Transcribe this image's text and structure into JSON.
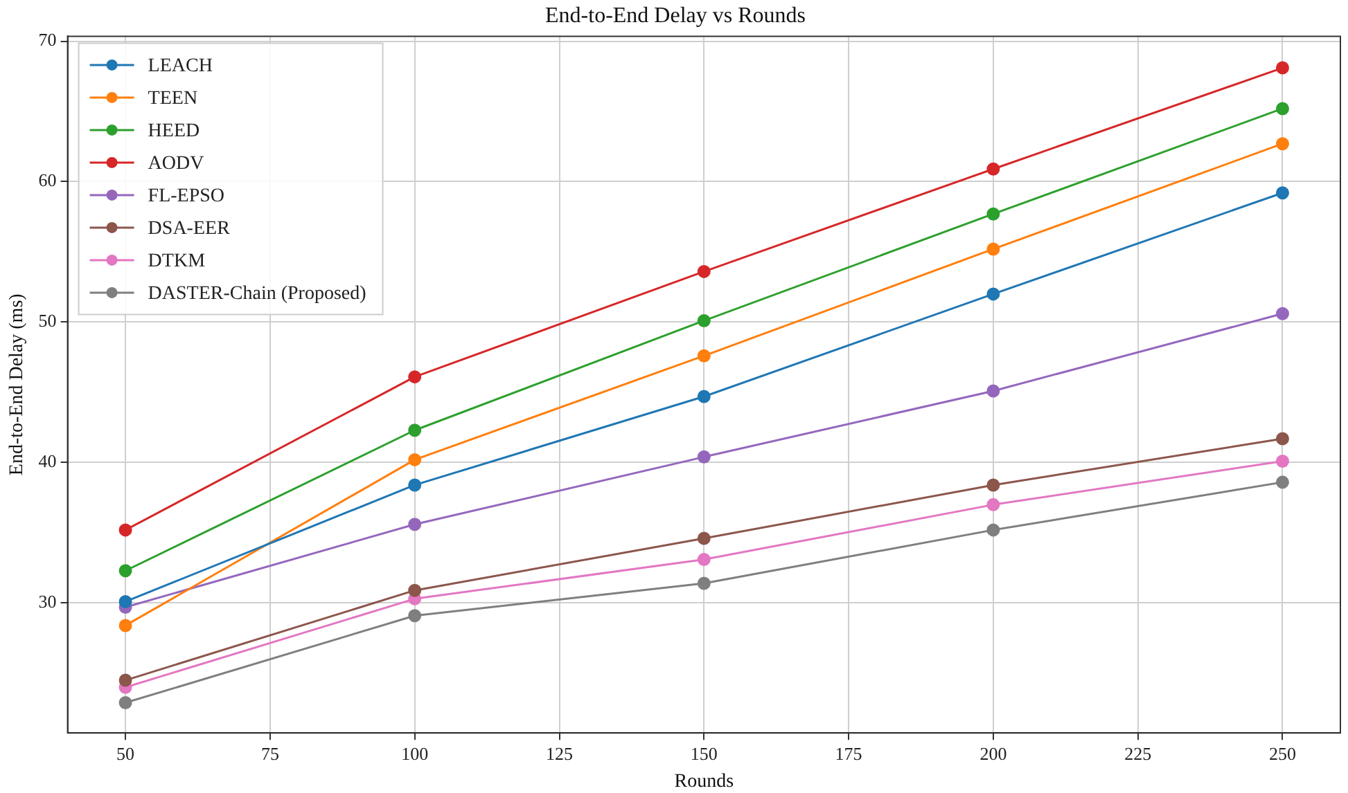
{
  "chart_data": {
    "type": "line",
    "title": "End-to-End Delay vs Rounds",
    "xlabel": "Rounds",
    "ylabel": "End-to-End Delay (ms)",
    "x": [
      50,
      100,
      150,
      200,
      250
    ],
    "series": [
      {
        "name": "LEACH",
        "color": "#1f77b4",
        "values": [
          30.1,
          38.4,
          44.7,
          52.0,
          59.2
        ]
      },
      {
        "name": "TEEN",
        "color": "#ff7f0e",
        "values": [
          28.4,
          40.2,
          47.6,
          55.2,
          62.7
        ]
      },
      {
        "name": "HEED",
        "color": "#2ca02c",
        "values": [
          32.3,
          42.3,
          50.1,
          57.7,
          65.2
        ]
      },
      {
        "name": "AODV",
        "color": "#d62728",
        "values": [
          35.2,
          46.1,
          53.6,
          60.9,
          68.1
        ]
      },
      {
        "name": "FL-EPSO",
        "color": "#9467bd",
        "values": [
          29.7,
          35.6,
          40.4,
          45.1,
          50.6
        ]
      },
      {
        "name": "DSA-EER",
        "color": "#8c564b",
        "values": [
          24.5,
          30.9,
          34.6,
          38.4,
          41.7
        ]
      },
      {
        "name": "DTKM",
        "color": "#e377c2",
        "values": [
          24.0,
          30.3,
          33.1,
          37.0,
          40.1
        ]
      },
      {
        "name": "DASTER-Chain (Proposed)",
        "color": "#7f7f7f",
        "values": [
          22.9,
          29.1,
          31.4,
          35.2,
          38.6
        ]
      }
    ],
    "xlim": [
      40,
      260
    ],
    "xticks": [
      50,
      75,
      100,
      125,
      150,
      175,
      200,
      225,
      250
    ],
    "ylim": [
      20.75,
      70.35
    ],
    "yticks": [
      30,
      40,
      50,
      60,
      70
    ],
    "grid": true,
    "legend": "top left",
    "marker": "circle",
    "line_style": "solid"
  }
}
